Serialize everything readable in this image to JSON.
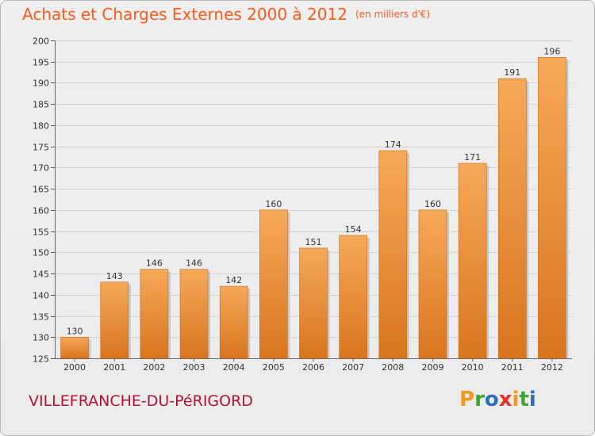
{
  "header": {
    "title": "Achats et Charges Externes 2000 à 2012",
    "unit": "(en milliers d'€)"
  },
  "footer": {
    "commune": "VILLEFRANCHE-DU-PéRIGORD",
    "logo_letters": [
      "P",
      "r",
      "o",
      "x",
      "i",
      "t",
      "i"
    ],
    "logo_colors": [
      "#f39a1b",
      "#3fa535",
      "#2e6fb7",
      "#e3312b",
      "#f39a1b",
      "#3fa535",
      "#2e6fb7"
    ]
  },
  "colors": {
    "bar_light": "#f6a95a",
    "bar_dark": "#d9751f",
    "title": "#ff5a1a",
    "commune": "#b8103a"
  },
  "chart_data": {
    "type": "bar",
    "title": "Achats et Charges Externes 2000 à 2012",
    "categories": [
      "2000",
      "2001",
      "2002",
      "2003",
      "2004",
      "2005",
      "2006",
      "2007",
      "2008",
      "2009",
      "2010",
      "2011",
      "2012"
    ],
    "values": [
      130,
      143,
      146,
      146,
      142,
      160,
      151,
      154,
      174,
      160,
      171,
      191,
      196
    ],
    "ylim": [
      125,
      200
    ],
    "yticks": [
      125,
      130,
      135,
      140,
      145,
      150,
      155,
      160,
      165,
      170,
      175,
      180,
      185,
      190,
      195,
      200
    ],
    "grid": true,
    "xlabel": "",
    "ylabel": ""
  }
}
